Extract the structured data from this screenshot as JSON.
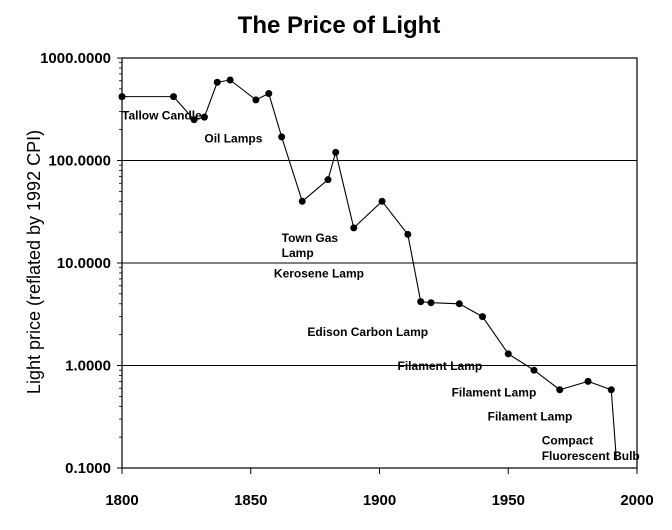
{
  "chart_data": {
    "type": "line",
    "title": "The  Price of Light",
    "xlabel": "",
    "ylabel": "Light price (reflated by 1992 CPI)",
    "xlim": [
      1800,
      2000
    ],
    "ylim": [
      0.1,
      1000
    ],
    "yscale": "log",
    "grid": "horizontal",
    "xticks": [
      1800,
      1850,
      1900,
      1950,
      2000
    ],
    "xtick_labels": [
      "1800",
      "1850",
      "1900",
      "1950",
      "2000"
    ],
    "yticks": [
      0.1,
      1,
      10,
      100,
      1000
    ],
    "ytick_labels": [
      "0.1000",
      "1.0000",
      "10.0000",
      "100.0000",
      "1000.0000"
    ],
    "series": [
      {
        "points": [
          [
            1800,
            420
          ],
          [
            1820,
            420
          ],
          [
            1828,
            250
          ],
          [
            1832,
            265
          ],
          [
            1837,
            580
          ],
          [
            1842,
            610
          ],
          [
            1852,
            390
          ],
          [
            1857,
            450
          ],
          [
            1862,
            170
          ],
          [
            1870,
            40
          ],
          [
            1880,
            65
          ],
          [
            1883,
            120
          ],
          [
            1890,
            22
          ],
          [
            1901,
            40
          ],
          [
            1911,
            19
          ],
          [
            1916,
            4.2
          ],
          [
            1920,
            4.1
          ],
          [
            1931,
            4.0
          ],
          [
            1940,
            3.0
          ],
          [
            1950,
            1.3
          ],
          [
            1960,
            0.9
          ],
          [
            1970,
            0.58
          ],
          [
            1981,
            0.7
          ],
          [
            1990,
            0.58
          ],
          [
            1992,
            0.12
          ]
        ]
      }
    ],
    "annotations": [
      {
        "text": "Tallow Candle",
        "x": 1800,
        "y": 250
      },
      {
        "text": "Oil Lamps",
        "x": 1832,
        "y": 150
      },
      {
        "text": "Town Gas",
        "x": 1862,
        "y": 16
      },
      {
        "text": "Lamp",
        "x": 1862,
        "y": 11.5
      },
      {
        "text": "Kerosene Lamp",
        "x": 1859,
        "y": 7.2
      },
      {
        "text": "Edison Carbon Lamp",
        "x": 1872,
        "y": 1.95
      },
      {
        "text": "Filament Lamp",
        "x": 1907,
        "y": 0.9
      },
      {
        "text": "Filament Lamp",
        "x": 1928,
        "y": 0.5
      },
      {
        "text": "Filament Lamp",
        "x": 1942,
        "y": 0.29
      },
      {
        "text": "Compact",
        "x": 1963,
        "y": 0.17
      },
      {
        "text": "Fluorescent Bulb",
        "x": 1963,
        "y": 0.12
      }
    ]
  }
}
